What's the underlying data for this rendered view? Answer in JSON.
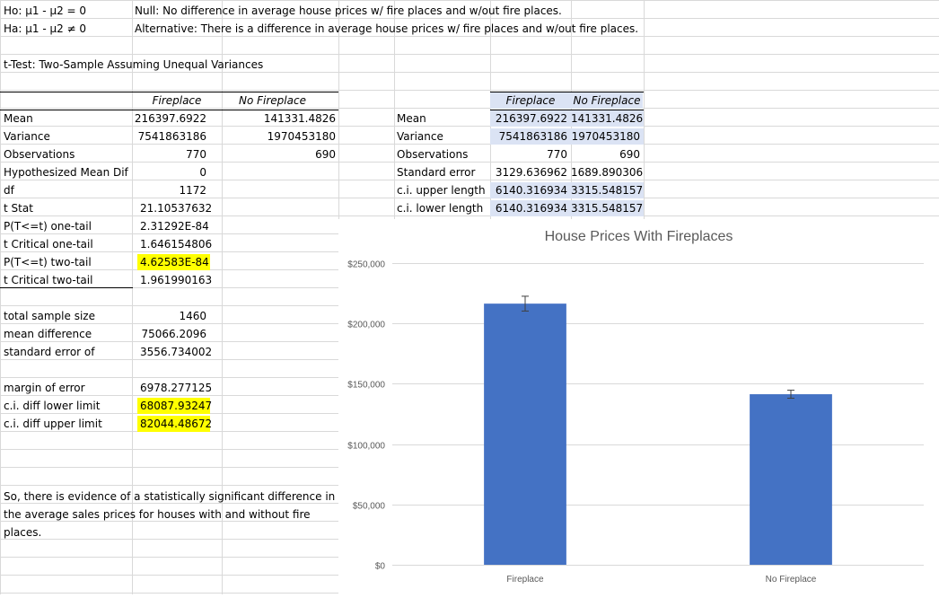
{
  "hypotheses": {
    "ho_label": "Ho: μ1 - μ2 = 0",
    "ha_label": "Ha: μ1 - μ2 ≠ 0",
    "null_text": "Null: No difference in average house prices w/ fire places and w/out fire places.",
    "alt_text": "Alternative: There is a difference in average house prices w/ fire places and w/out fire places."
  },
  "ttest": {
    "title": "t-Test: Two-Sample Assuming Unequal Variances",
    "col1": "Fireplace",
    "col2": "No Fireplace",
    "rows": [
      {
        "label": "Mean",
        "v1": "216397.6922",
        "v2": "141331.4826"
      },
      {
        "label": "Variance",
        "v1": "7541863186",
        "v2": "1970453180"
      },
      {
        "label": "Observations",
        "v1": "770",
        "v2": "690"
      },
      {
        "label": "Hypothesized Mean Dif",
        "v1": "0",
        "v2": ""
      },
      {
        "label": "df",
        "v1": "1172",
        "v2": ""
      },
      {
        "label": "t Stat",
        "v1": "21.10537632",
        "v2": ""
      },
      {
        "label": "P(T<=t) one-tail",
        "v1": "2.31292E-84",
        "v2": ""
      },
      {
        "label": "t Critical one-tail",
        "v1": "1.646154806",
        "v2": ""
      },
      {
        "label": "P(T<=t) two-tail",
        "v1": "4.62583E-84",
        "v2": ""
      },
      {
        "label": "t Critical two-tail",
        "v1": "1.961990163",
        "v2": ""
      }
    ]
  },
  "extra": {
    "total_sample_label": "total sample size",
    "total_sample_value": "1460",
    "mean_diff_label": "mean difference",
    "mean_diff_value": "75066.2096",
    "se_label": "standard error of",
    "se_value": "3556.734002",
    "moe_label": "margin of error",
    "moe_value": "6978.277125",
    "lower_label": "c.i. diff lower limit",
    "lower_value": "68087.93247",
    "upper_label": "c.i. diff upper limit",
    "upper_value": "82044.48672"
  },
  "conclusion": "So, there is evidence of a statistically significant difference in the average sales prices for houses with and without fire places.",
  "summary": {
    "col1": "Fireplace",
    "col2": "No Fireplace",
    "rows": [
      {
        "label": "Mean",
        "v1": "216397.6922",
        "v2": "141331.4826"
      },
      {
        "label": "Variance",
        "v1": "7541863186",
        "v2": "1970453180"
      },
      {
        "label": "Observations",
        "v1": "770",
        "v2": "690"
      },
      {
        "label": "Standard error",
        "v1": "3129.636962",
        "v2": "1689.890306"
      },
      {
        "label": "c.i. upper length",
        "v1": "6140.316934",
        "v2": "3315.548157"
      },
      {
        "label": "c.i. lower length",
        "v1": "6140.316934",
        "v2": "3315.548157"
      }
    ]
  },
  "chart_data": {
    "type": "bar",
    "title": "House Prices With Fireplaces",
    "categories": [
      "Fireplace",
      "No Fireplace"
    ],
    "values": [
      216397.6922,
      141331.4826
    ],
    "error_plus": [
      6140.316934,
      3315.548157
    ],
    "error_minus": [
      6140.316934,
      3315.548157
    ],
    "ylim": [
      0,
      250000
    ],
    "yticks": [
      0,
      50000,
      100000,
      150000,
      200000,
      250000
    ],
    "ytick_labels": [
      "$0",
      "$50,000",
      "$100,000",
      "$150,000",
      "$200,000",
      "$250,000"
    ],
    "xlabel": "",
    "ylabel": "",
    "grid": true,
    "bar_color": "#4472c4"
  }
}
